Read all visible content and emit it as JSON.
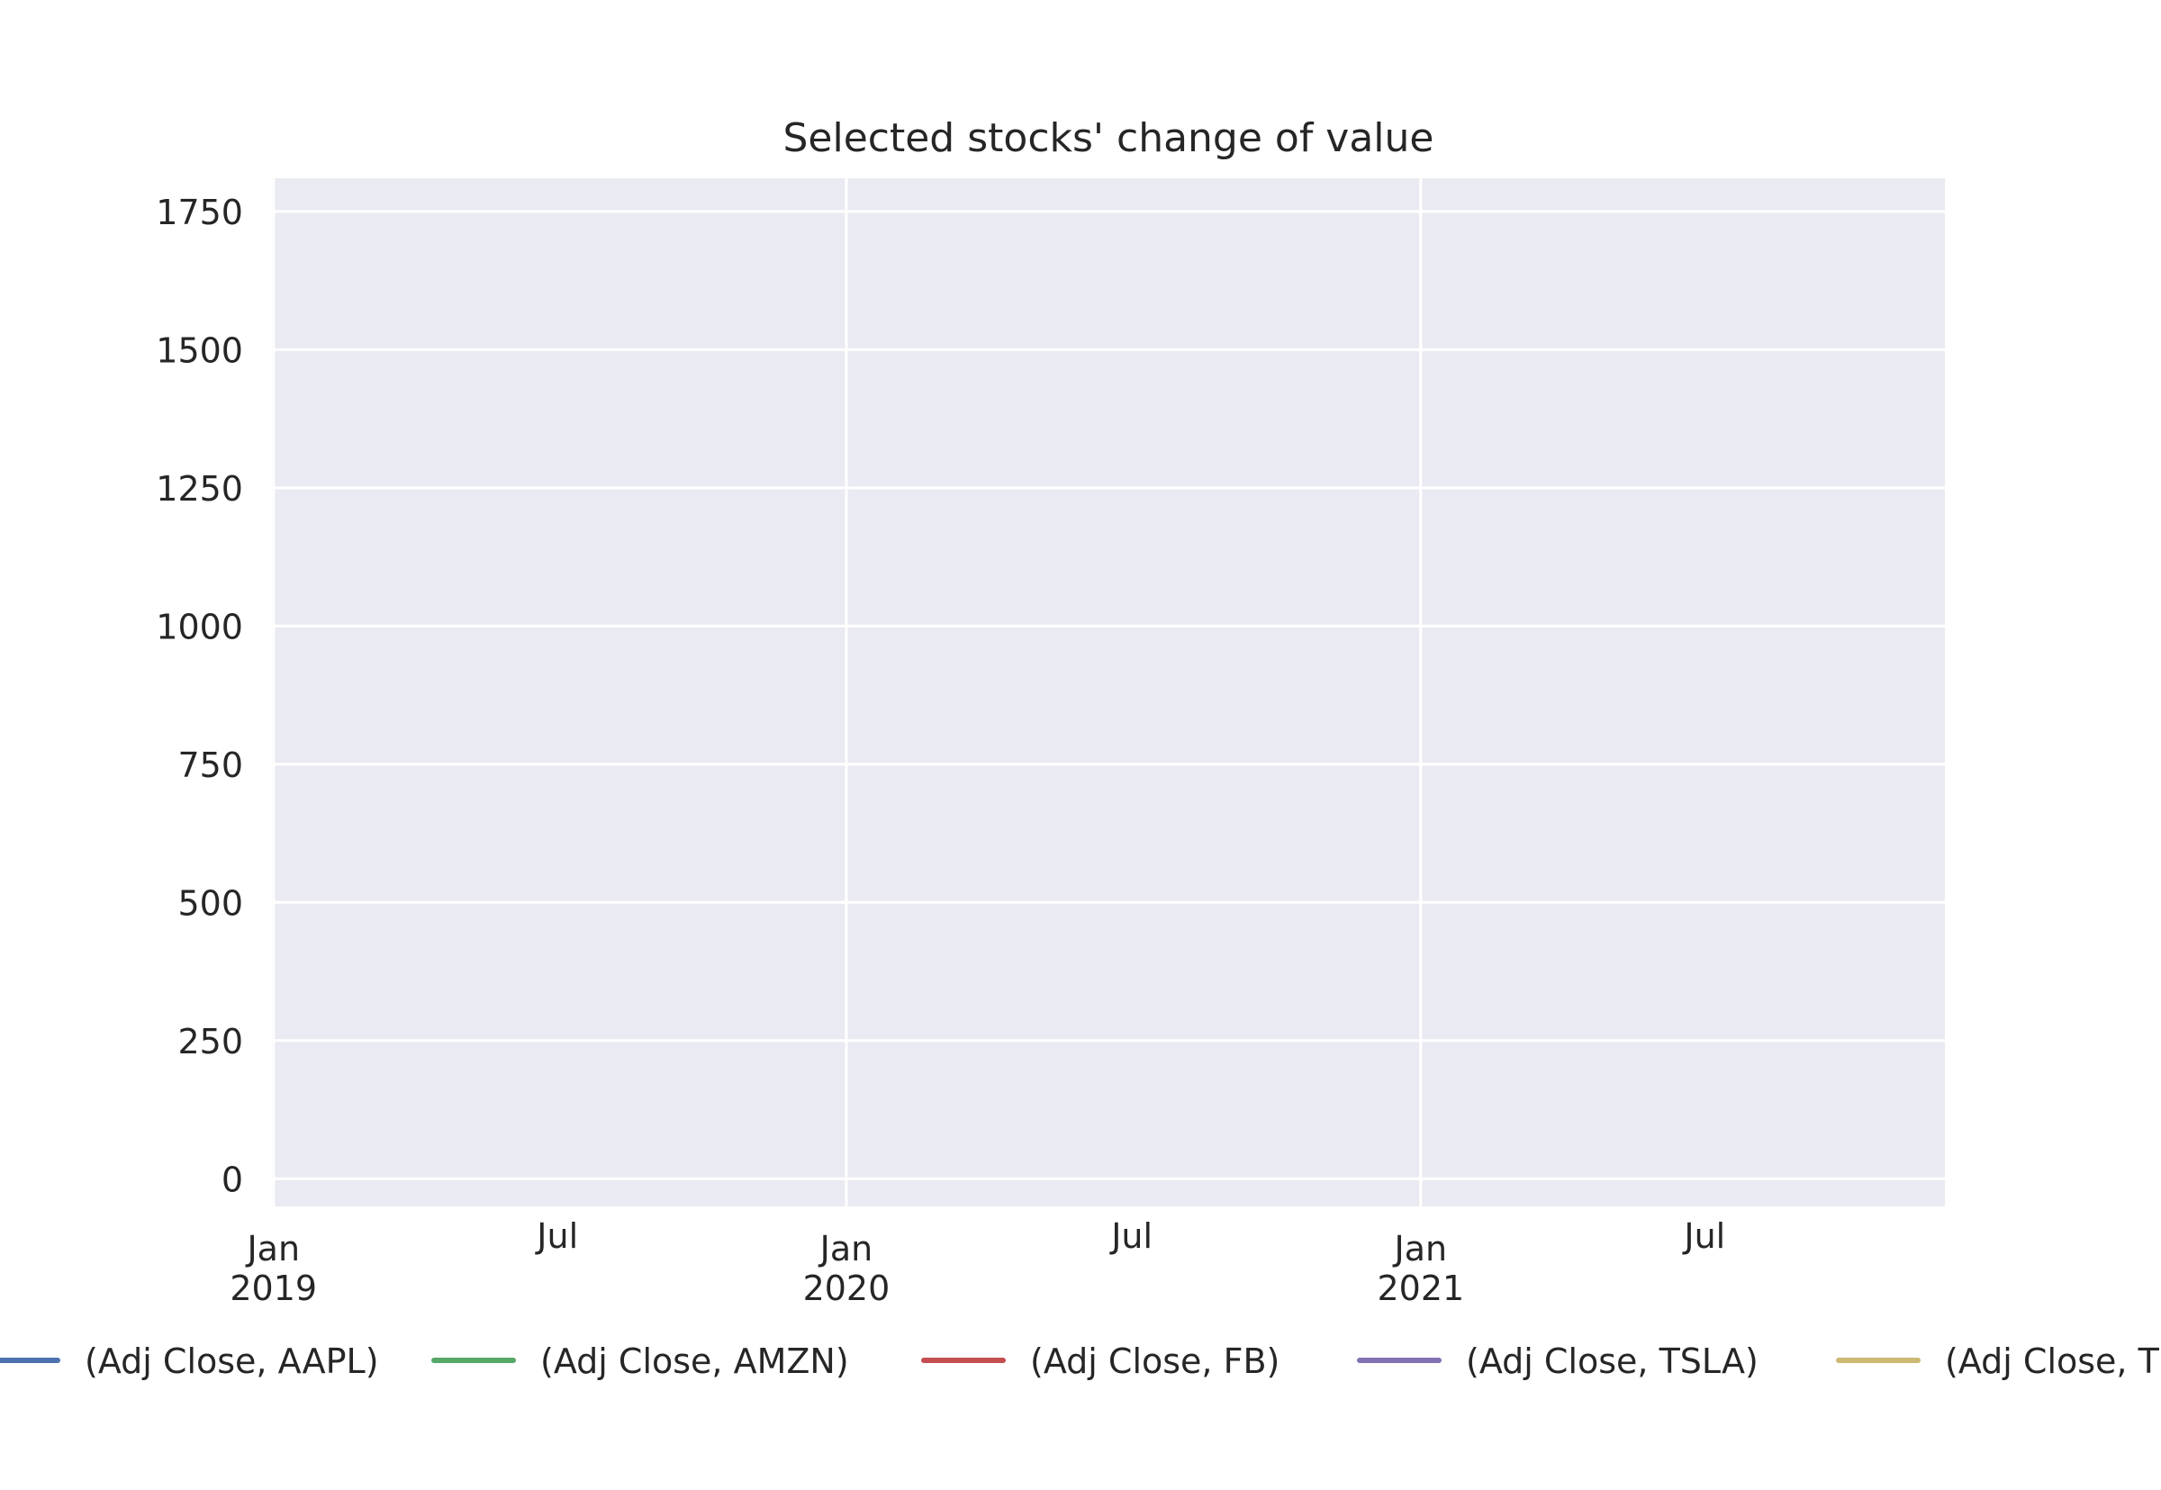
{
  "chart_data": {
    "type": "line",
    "title": "Selected stocks' change of value",
    "xlabel": "",
    "ylabel": "",
    "x_type": "date",
    "xlim": [
      "2018-12-31",
      "2021-12-01"
    ],
    "ylim": [
      -50,
      1810
    ],
    "grid": true,
    "x_ticks": [
      {
        "value": "2019-01-01",
        "label": [
          "Jan",
          "2019"
        ],
        "major": true
      },
      {
        "value": "2019-07-01",
        "label": [
          "Jul"
        ],
        "major": false
      },
      {
        "value": "2020-01-01",
        "label": [
          "Jan",
          "2020"
        ],
        "major": true
      },
      {
        "value": "2020-07-01",
        "label": [
          "Jul"
        ],
        "major": false
      },
      {
        "value": "2021-01-01",
        "label": [
          "Jan",
          "2021"
        ],
        "major": true
      },
      {
        "value": "2021-07-01",
        "label": [
          "Jul"
        ],
        "major": false
      }
    ],
    "y_ticks": [
      0,
      250,
      500,
      750,
      1000,
      1250,
      1500,
      1750
    ],
    "legend_position": "bottom",
    "series": [
      {
        "name": "(Adj Close, AAPL)",
        "color": "#4c72b0",
        "x": [],
        "values": []
      },
      {
        "name": "(Adj Close, AMZN)",
        "color": "#55a868",
        "x": [],
        "values": []
      },
      {
        "name": "(Adj Close, FB)",
        "color": "#c44e52",
        "x": [],
        "values": []
      },
      {
        "name": "(Adj Close, TSLA)",
        "color": "#8172b3",
        "x": [],
        "values": []
      },
      {
        "name": "(Adj Close, T",
        "color": "#ccb974",
        "x": [],
        "values": []
      }
    ]
  }
}
